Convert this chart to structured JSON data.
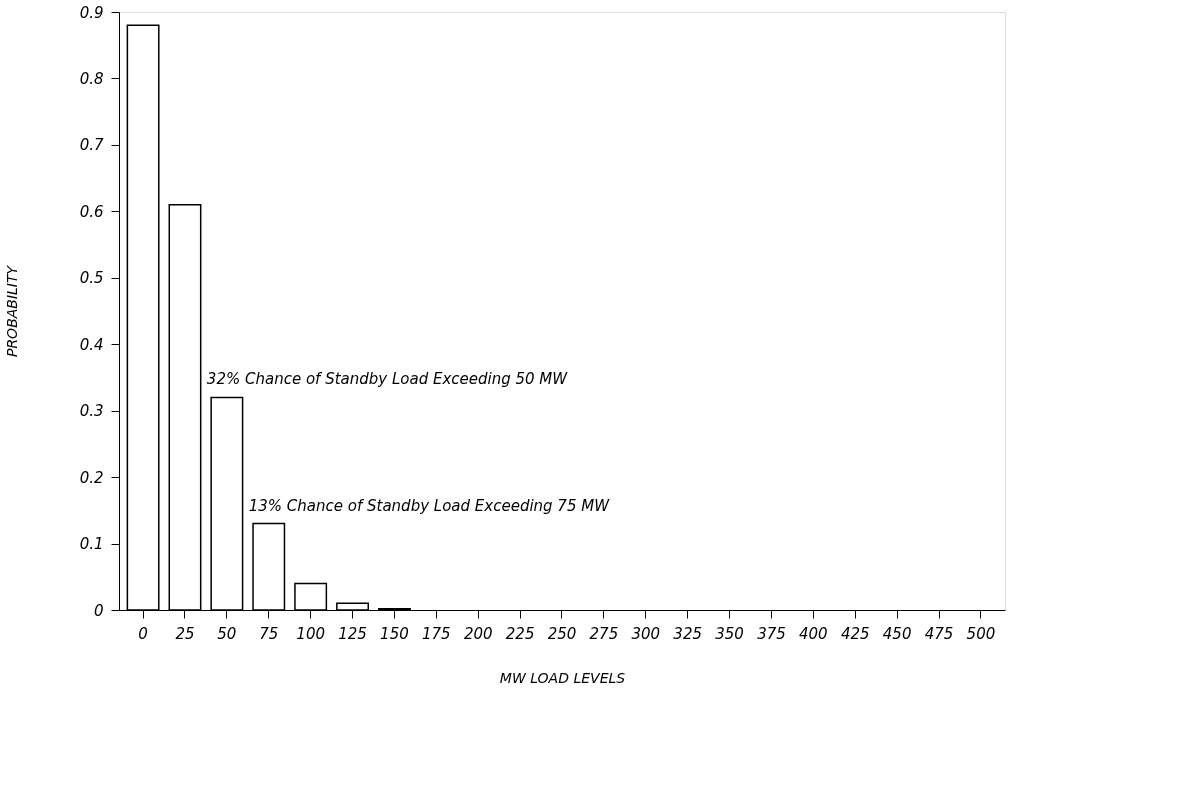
{
  "chart_data": {
    "type": "bar",
    "xlabel": "MW LOAD LEVELS",
    "ylabel": "PROBABILITY",
    "categories": [
      "0",
      "25",
      "50",
      "75",
      "100",
      "125",
      "150",
      "175",
      "200",
      "225",
      "250",
      "275",
      "300",
      "325",
      "350",
      "375",
      "400",
      "425",
      "450",
      "475",
      "500"
    ],
    "values": [
      0.88,
      0.61,
      0.32,
      0.13,
      0.04,
      0.01,
      0.002,
      null,
      null,
      null,
      null,
      null,
      null,
      null,
      null,
      null,
      null,
      null,
      null,
      null,
      null
    ],
    "color": "#ffffff",
    "ylim": [
      0,
      0.9
    ],
    "yticks": [
      0,
      0.1,
      0.2,
      0.3,
      0.4,
      0.5,
      0.6,
      0.7,
      0.8,
      0.9
    ],
    "grid": false,
    "annotations": [
      {
        "text": "32% Chance of Standby Load Exceeding 50 MW",
        "x": "50",
        "y": 0.32
      },
      {
        "text": "13% Chance of Standby Load Exceeding 75 MW",
        "x": "75",
        "y": 0.13
      }
    ]
  }
}
